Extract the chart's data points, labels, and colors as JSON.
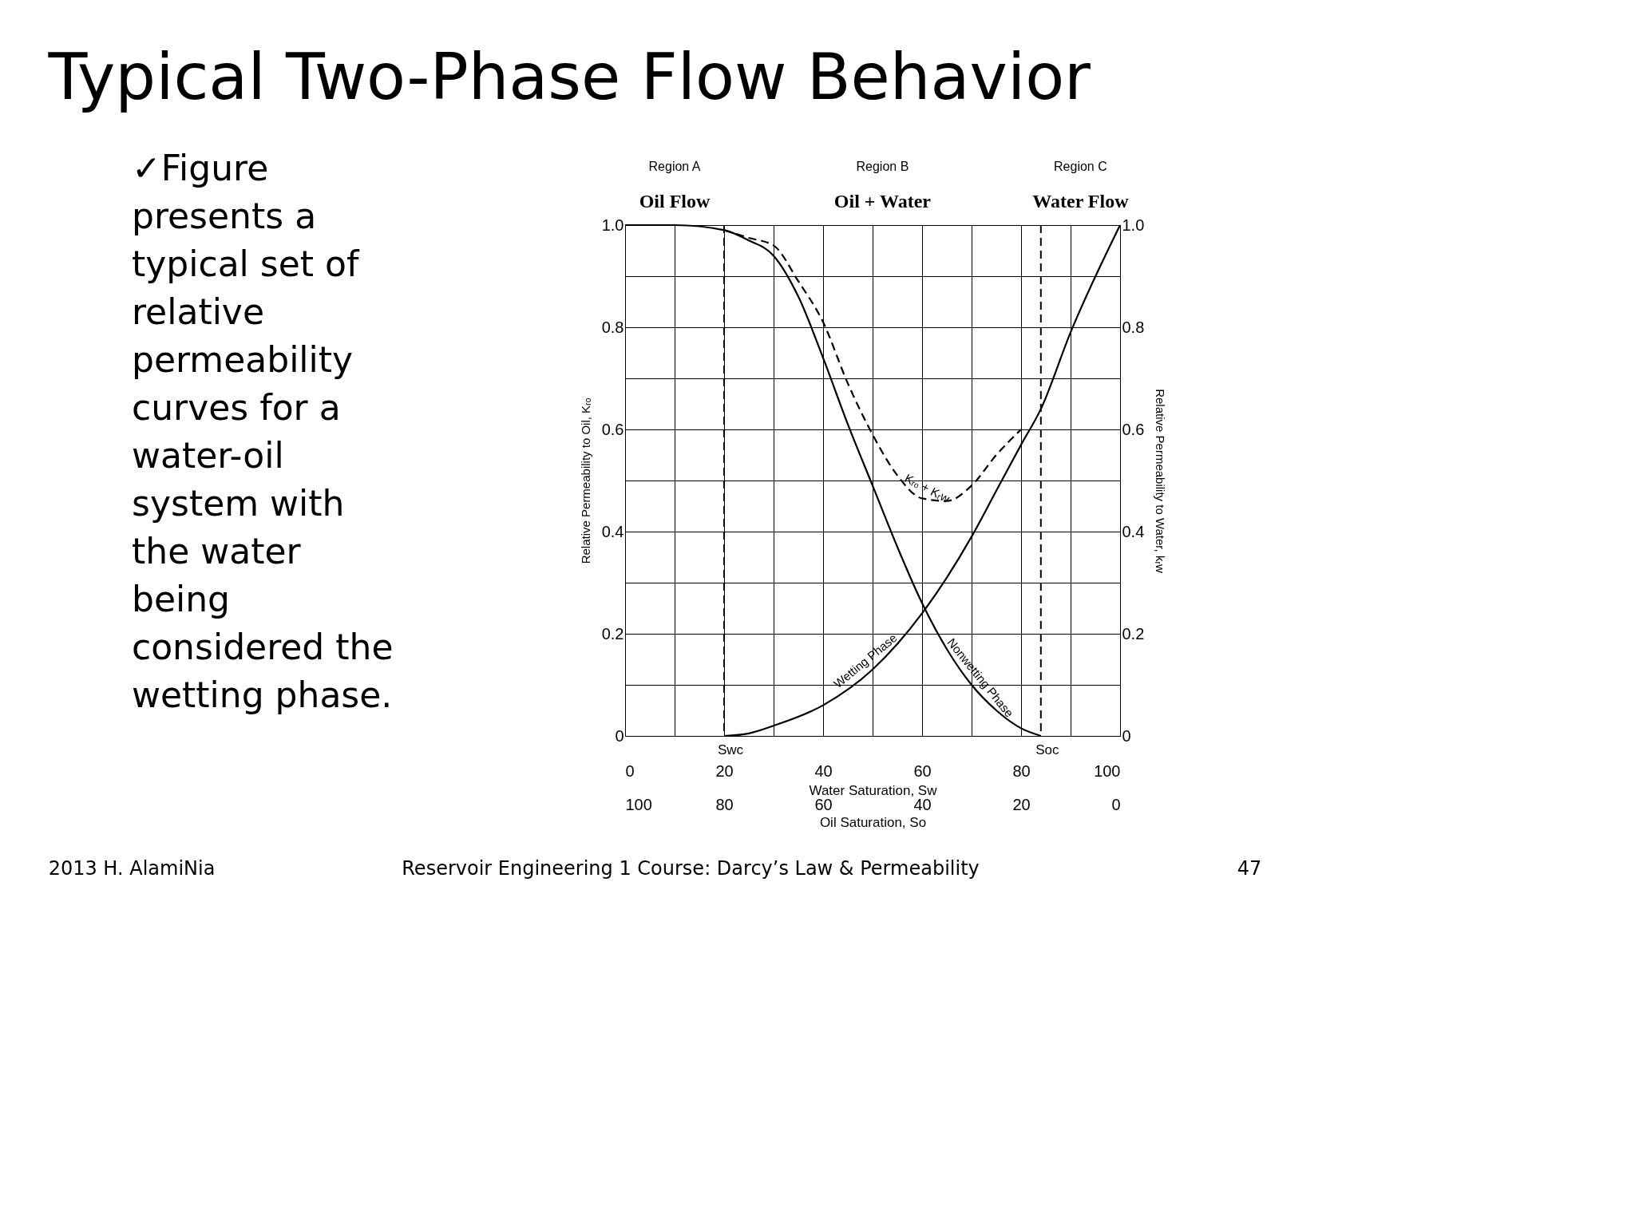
{
  "chart_data": {
    "type": "line",
    "title": "Typical Two-Phase Flow Behavior",
    "xlabel": "Water Saturation, Sw",
    "x2label": "Oil Saturation, So",
    "ylabel": "Relative Permeability to Oil, Kᵣₒ",
    "y2label": "Relative Permeability to Water, kᵣw",
    "xlim": [
      0,
      100
    ],
    "x2lim": [
      100,
      0
    ],
    "ylim": [
      0,
      1
    ],
    "y2lim": [
      0,
      1
    ],
    "xticks": [
      0,
      {
        "value": 10,
        "label": null
      },
      20,
      {
        "value": 30,
        "label": null
      },
      40,
      {
        "value": 50,
        "label": null
      },
      60,
      {
        "value": 70,
        "label": null
      },
      80,
      {
        "value": 90,
        "label": null
      },
      100
    ],
    "x2ticks": [
      100,
      80,
      60,
      40,
      20,
      0
    ],
    "yticks": [
      0,
      {
        "value": 0.1,
        "label": null
      },
      {
        "value": 0.2,
        "label": "0.2"
      },
      {
        "value": 0.3,
        "label": null
      },
      {
        "value": 0.4,
        "label": "0.4"
      },
      {
        "value": 0.5,
        "label": null
      },
      {
        "value": 0.6,
        "label": "0.6"
      },
      {
        "value": 0.7,
        "label": null
      },
      {
        "value": 0.8,
        "label": "0.8"
      },
      {
        "value": 0.9,
        "label": null
      },
      {
        "value": 1,
        "label": "1.0"
      }
    ],
    "y2ticks": [
      0,
      {
        "value": 0.2,
        "label": "0.2"
      },
      {
        "value": 0.4,
        "label": "0.4"
      },
      {
        "value": 0.6,
        "label": "0.6"
      },
      {
        "value": 0.8,
        "label": "0.8"
      },
      {
        "value": 1,
        "label": "1.0"
      }
    ],
    "grid": true,
    "marker": "none",
    "series": [
      {
        "name": "Nonwetting Phase",
        "color": "#000000",
        "line_style": "solid",
        "x": [
          0,
          10,
          20,
          25,
          30,
          35,
          40,
          45,
          50,
          55,
          60,
          65,
          70,
          75,
          80,
          84
        ],
        "values": [
          1.0,
          1.0,
          0.99,
          0.97,
          0.94,
          0.86,
          0.74,
          0.61,
          0.49,
          0.37,
          0.26,
          0.17,
          0.1,
          0.05,
          0.015,
          0
        ]
      },
      {
        "name": "Wetting Phase",
        "color": "#000000",
        "line_style": "solid",
        "axis": "y2",
        "x": [
          20,
          25,
          30,
          40,
          50,
          55,
          60,
          65,
          70,
          75,
          80,
          84,
          90,
          100
        ],
        "values": [
          0,
          0.005,
          0.02,
          0.06,
          0.13,
          0.18,
          0.24,
          0.31,
          0.39,
          0.48,
          0.57,
          0.64,
          0.79,
          1.0
        ]
      },
      {
        "name": "Kᵣₒ + Kᵣw",
        "color": "#000000",
        "line_style": "dashed",
        "x": [
          20,
          25,
          30,
          35,
          40,
          45,
          50,
          55,
          60,
          65,
          70,
          75,
          80
        ],
        "values": [
          0.99,
          0.975,
          0.96,
          0.89,
          0.81,
          0.69,
          0.59,
          0.51,
          0.465,
          0.46,
          0.49,
          0.55,
          0.6
        ]
      }
    ],
    "ref_lines": [
      {
        "axis": "x",
        "value": 20,
        "label": "Swc",
        "line_style": "dashed"
      },
      {
        "axis": "x",
        "value": 84,
        "label": "Soc",
        "line_style": "dashed"
      }
    ],
    "annotations": [
      "Region A",
      "Region B",
      "Region C",
      "Oil Flow",
      "Oil + Water",
      "Water Flow",
      "✓Figure presents a typical set of relative permeability curves for a water-oil system with the water being considered the wetting phase.",
      "2013 H. AlamiNia",
      "Reservoir Engineering 1 Course: Darcy’s Law & Permeability",
      "47"
    ]
  }
}
